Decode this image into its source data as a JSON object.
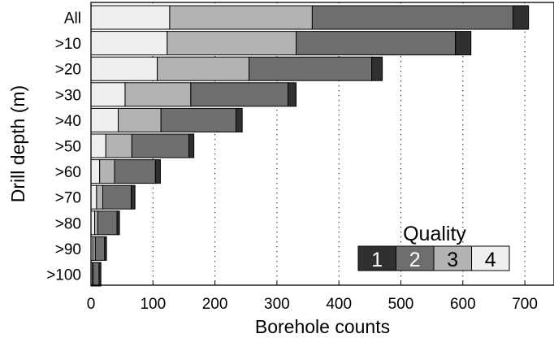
{
  "chart_data": {
    "type": "bar",
    "orientation": "horizontal",
    "stacked": true,
    "title": "",
    "xlabel": "Borehole counts",
    "ylabel": "Drill depth (m)",
    "xlim": [
      0,
      750
    ],
    "xticks": [
      0,
      100,
      200,
      300,
      400,
      500,
      600,
      700
    ],
    "grid": "vertical dotted",
    "categories": [
      "All",
      ">10",
      ">20",
      ">30",
      ">40",
      ">50",
      ">60",
      ">70",
      ">80",
      ">90",
      ">100"
    ],
    "series": [
      {
        "name": "4",
        "color": "#efefef",
        "values": [
          127,
          123,
          107,
          55,
          44,
          24,
          14,
          9,
          6,
          3,
          2
        ]
      },
      {
        "name": "3",
        "color": "#b3b3b3",
        "values": [
          230,
          208,
          148,
          106,
          69,
          42,
          24,
          10,
          5,
          4,
          2
        ]
      },
      {
        "name": "2",
        "color": "#6e6e6e",
        "values": [
          324,
          257,
          198,
          157,
          121,
          92,
          66,
          46,
          31,
          15,
          9
        ]
      },
      {
        "name": "1",
        "color": "#303030",
        "values": [
          25,
          25,
          17,
          13,
          10,
          8,
          8,
          6,
          4,
          3,
          3
        ]
      }
    ],
    "legend": {
      "title": "Quality",
      "entries": [
        "1",
        "2",
        "3",
        "4"
      ],
      "placement": "bottom-right"
    }
  },
  "colors": {
    "q1": "#303030",
    "q2": "#6e6e6e",
    "q3": "#b3b3b3",
    "q4": "#efefef"
  }
}
